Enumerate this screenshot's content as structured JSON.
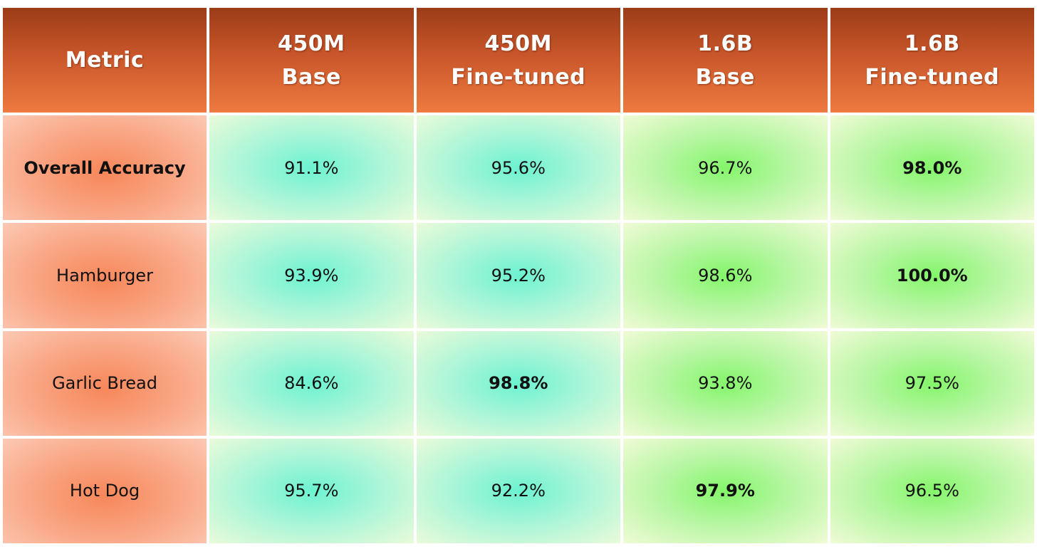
{
  "chart_data": {
    "type": "table",
    "columns": [
      {
        "line1": "Metric",
        "line2": ""
      },
      {
        "line1": "450M",
        "line2": "Base"
      },
      {
        "line1": "450M",
        "line2": "Fine-tuned"
      },
      {
        "line1": "1.6B",
        "line2": "Base"
      },
      {
        "line1": "1.6B",
        "line2": "Fine-tuned"
      }
    ],
    "rows": [
      {
        "metric": "Overall Accuracy",
        "metric_bold": true,
        "values": [
          "91.1%",
          "95.6%",
          "96.7%",
          "98.0%"
        ],
        "best_index": 3
      },
      {
        "metric": "Hamburger",
        "metric_bold": false,
        "values": [
          "93.9%",
          "95.2%",
          "98.6%",
          "100.0%"
        ],
        "best_index": 3
      },
      {
        "metric": "Garlic Bread",
        "metric_bold": false,
        "values": [
          "84.6%",
          "98.8%",
          "93.8%",
          "97.5%"
        ],
        "best_index": 1
      },
      {
        "metric": "Hot Dog",
        "metric_bold": false,
        "values": [
          "95.7%",
          "92.2%",
          "97.9%",
          "96.5%"
        ],
        "best_index": 2
      }
    ]
  },
  "colors": {
    "header_top": "#9b3c18",
    "header_bottom": "#ee7a40",
    "metric_cell": "#f7875a",
    "cyan_cell": "#6cf2d0",
    "green_cell": "#84f56a"
  }
}
